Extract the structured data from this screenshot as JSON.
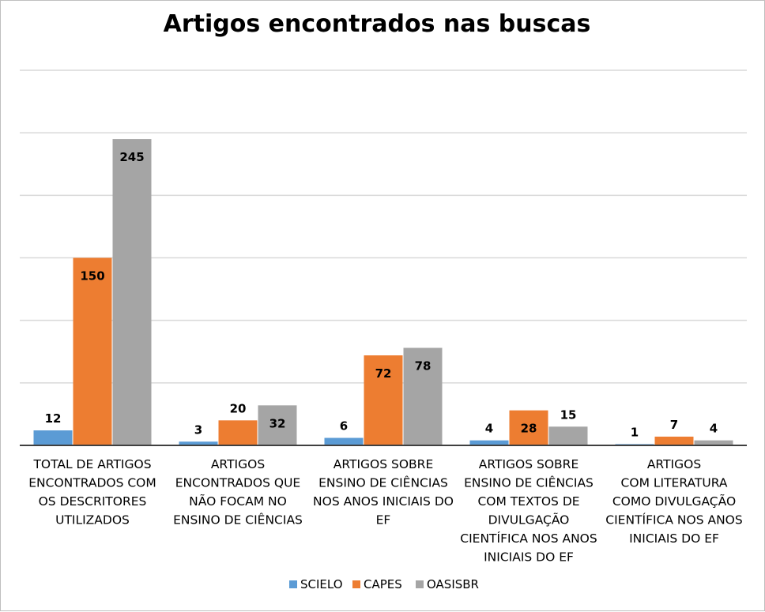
{
  "chart_data": {
    "type": "bar",
    "title": "Artigos encontrados nas buscas",
    "xlabel": "",
    "ylabel": "",
    "ylim": [
      0,
      300
    ],
    "grid": true,
    "legend_position": "bottom",
    "categories": [
      [
        "TOTAL DE ARTIGOS",
        "ENCONTRADOS COM",
        "OS DESCRITORES",
        "UTILIZADOS"
      ],
      [
        "ARTIGOS",
        "ENCONTRADOS QUE",
        "NÃO FOCAM NO",
        "ENSINO DE CIÊNCIAS"
      ],
      [
        "ARTIGOS SOBRE",
        "ENSINO DE CIÊNCIAS",
        "NOS ANOS INICIAIS DO",
        "EF"
      ],
      [
        "ARTIGOS SOBRE",
        "ENSINO DE CIÊNCIAS",
        "COM TEXTOS DE",
        "DIVULGAÇÃO",
        "CIENTÍFICA NOS ANOS",
        "INICIAIS DO EF"
      ],
      [
        "ARTIGOS",
        "COM  LITERATURA",
        "COMO DIVULGAÇÃO",
        "CIENTÍFICA NOS ANOS",
        "INICIAIS DO EF"
      ]
    ],
    "series": [
      {
        "name": "SCIELO",
        "color": "#5b9bd5",
        "values": [
          12,
          3,
          6,
          4,
          1
        ]
      },
      {
        "name": "CAPES",
        "color": "#ed7d31",
        "values": [
          150,
          20,
          72,
          28,
          7
        ]
      },
      {
        "name": "OASISBR",
        "color": "#a5a5a5",
        "values": [
          245,
          32,
          78,
          15,
          4
        ]
      }
    ]
  }
}
